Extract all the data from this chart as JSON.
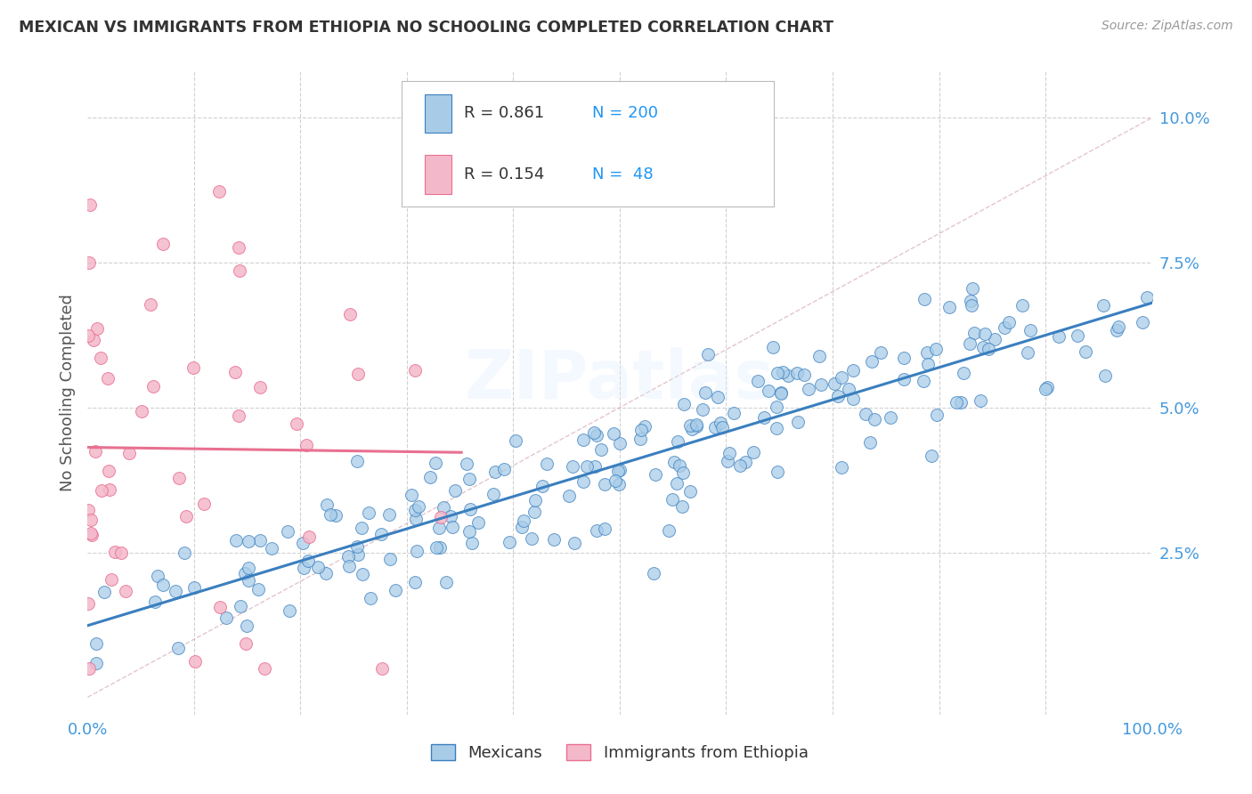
{
  "title": "MEXICAN VS IMMIGRANTS FROM ETHIOPIA NO SCHOOLING COMPLETED CORRELATION CHART",
  "source": "Source: ZipAtlas.com",
  "ylabel": "No Schooling Completed",
  "xlim": [
    0.0,
    1.0
  ],
  "ylim": [
    -0.003,
    0.108
  ],
  "yticks": [
    0.0,
    0.025,
    0.05,
    0.075,
    0.1
  ],
  "ytick_labels": [
    "",
    "2.5%",
    "5.0%",
    "7.5%",
    "10.0%"
  ],
  "xticks": [
    0.0,
    0.1,
    0.2,
    0.3,
    0.4,
    0.5,
    0.6,
    0.7,
    0.8,
    0.9,
    1.0
  ],
  "xtick_labels": [
    "0.0%",
    "",
    "",
    "",
    "",
    "",
    "",
    "",
    "",
    "",
    "100.0%"
  ],
  "legend_r1": "0.861",
  "legend_n1": "200",
  "legend_r2": "0.154",
  "legend_n2": " 48",
  "legend_label1": "Mexicans",
  "legend_label2": "Immigrants from Ethiopia",
  "color_blue": "#a8cce8",
  "color_pink": "#f4b8cb",
  "color_blue_dark": "#3a7fbf",
  "color_pink_dark": "#e87090",
  "color_diag": "#d0a0a8",
  "color_grid": "#cccccc",
  "color_title": "#333333",
  "color_axis_label": "#555555",
  "color_blue_text": "#2196F3",
  "color_tick_text": "#4499dd",
  "watermark": "ZIPatlas",
  "background": "#ffffff",
  "seed": 42,
  "N_mex": 200,
  "N_eth": 48
}
